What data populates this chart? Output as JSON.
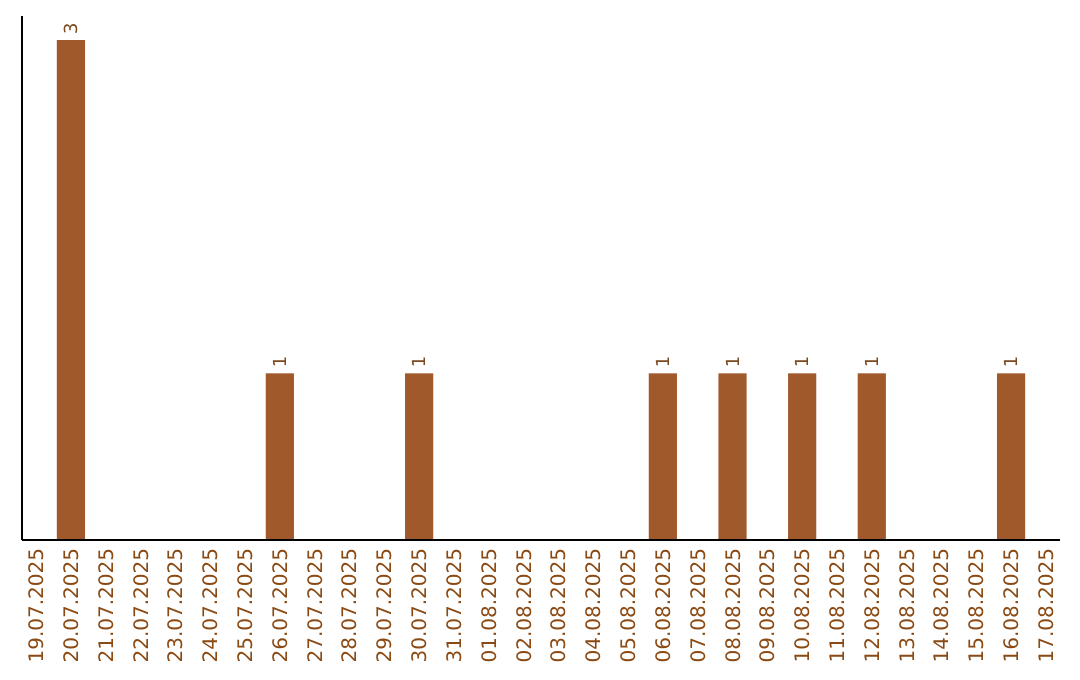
{
  "chart_data": {
    "type": "bar",
    "categories": [
      "19.07.2025",
      "20.07.2025",
      "21.07.2025",
      "22.07.2025",
      "23.07.2025",
      "24.07.2025",
      "25.07.2025",
      "26.07.2025",
      "27.07.2025",
      "28.07.2025",
      "29.07.2025",
      "30.07.2025",
      "31.07.2025",
      "01.08.2025",
      "02.08.2025",
      "03.08.2025",
      "04.08.2025",
      "05.08.2025",
      "06.08.2025",
      "07.08.2025",
      "08.08.2025",
      "09.08.2025",
      "10.08.2025",
      "11.08.2025",
      "12.08.2025",
      "13.08.2025",
      "14.08.2025",
      "15.08.2025",
      "16.08.2025",
      "17.08.2025"
    ],
    "values": [
      0,
      3,
      0,
      0,
      0,
      0,
      0,
      1,
      0,
      0,
      0,
      1,
      0,
      0,
      0,
      0,
      0,
      0,
      1,
      0,
      1,
      0,
      1,
      0,
      1,
      0,
      0,
      0,
      1,
      0
    ],
    "value_labels": [
      null,
      "3",
      null,
      null,
      null,
      null,
      null,
      "1",
      null,
      null,
      null,
      "1",
      null,
      null,
      null,
      null,
      null,
      null,
      "1",
      null,
      "1",
      null,
      "1",
      null,
      "1",
      null,
      null,
      null,
      "1",
      null
    ],
    "color": "#a0592b",
    "tick_labels": "x"
  }
}
